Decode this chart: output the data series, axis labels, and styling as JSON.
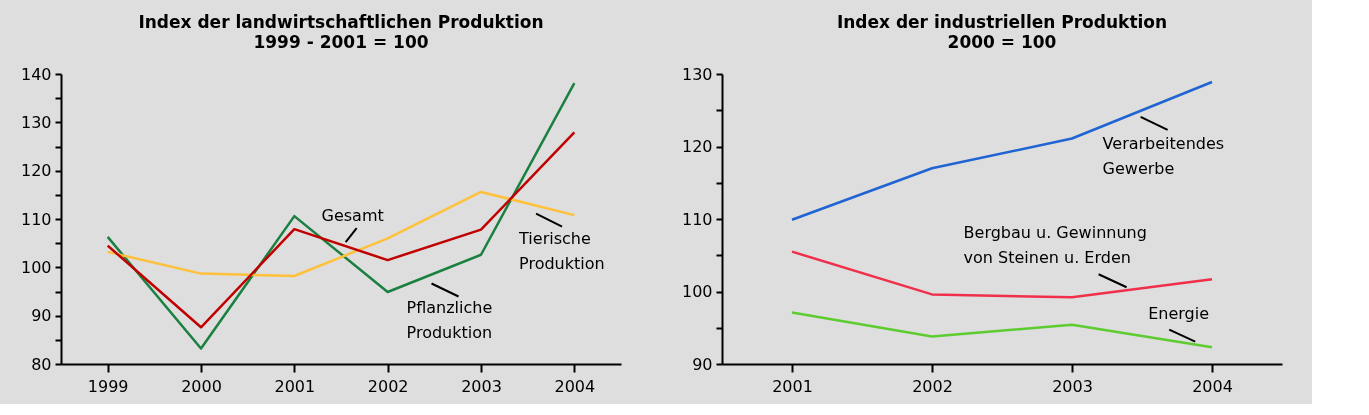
{
  "chart_data": [
    {
      "type": "line",
      "title": "Index der landwirtschaftlichen Produktion",
      "subtitle": "1999 - 2001 = 100",
      "categories": [
        "1999",
        "2000",
        "2001",
        "2002",
        "2003",
        "2004"
      ],
      "ylim": [
        80,
        140
      ],
      "yticks": [
        80,
        {
          "value": 85,
          "label": null
        },
        90,
        {
          "value": 95,
          "label": null
        },
        100,
        {
          "value": 105,
          "label": null
        },
        110,
        {
          "value": 115,
          "label": null
        },
        120,
        {
          "value": 125,
          "label": null
        },
        130,
        {
          "value": 135,
          "label": null
        },
        140
      ],
      "line_style": "solid",
      "marker": "none",
      "series": [
        {
          "name": "Pflanzliche\nProduktion",
          "color": "#1a8040",
          "values": [
            106.3,
            83.2,
            110.6,
            94.9,
            102.6,
            138.1
          ]
        },
        {
          "name": "Tierische\nProduktion",
          "color": "#ffc03a",
          "values": [
            103.2,
            98.7,
            98.2,
            106.0,
            115.6,
            110.8
          ]
        },
        {
          "name": "Gesamt",
          "color": "#c00000",
          "values": [
            104.5,
            87.6,
            107.9,
            101.5,
            107.8,
            127.9
          ]
        }
      ]
    },
    {
      "type": "line",
      "title": "Index der industriellen Produktion",
      "subtitle": "2000 = 100",
      "categories": [
        "2001",
        "2002",
        "2003",
        "2004"
      ],
      "ylim": [
        90,
        130
      ],
      "yticks": [
        90,
        {
          "value": 95,
          "label": null
        },
        100,
        {
          "value": 105,
          "label": null
        },
        110,
        {
          "value": 115,
          "label": null
        },
        120,
        {
          "value": 125,
          "label": null
        },
        130
      ],
      "line_style": "solid",
      "marker": "none",
      "series": [
        {
          "name": "Verarbeitendes\nGewerbe",
          "color": "#1f64d2",
          "values": [
            109.9,
            117.0,
            121.1,
            128.9
          ]
        },
        {
          "name": "Bergbau u. Gewinnung\nvon Steinen u. Erden",
          "color": "#f0304a",
          "values": [
            105.5,
            99.6,
            99.2,
            101.7
          ]
        },
        {
          "name": "Energie",
          "color": "#5ccc30",
          "values": [
            97.1,
            93.8,
            95.4,
            92.3
          ]
        }
      ]
    }
  ]
}
